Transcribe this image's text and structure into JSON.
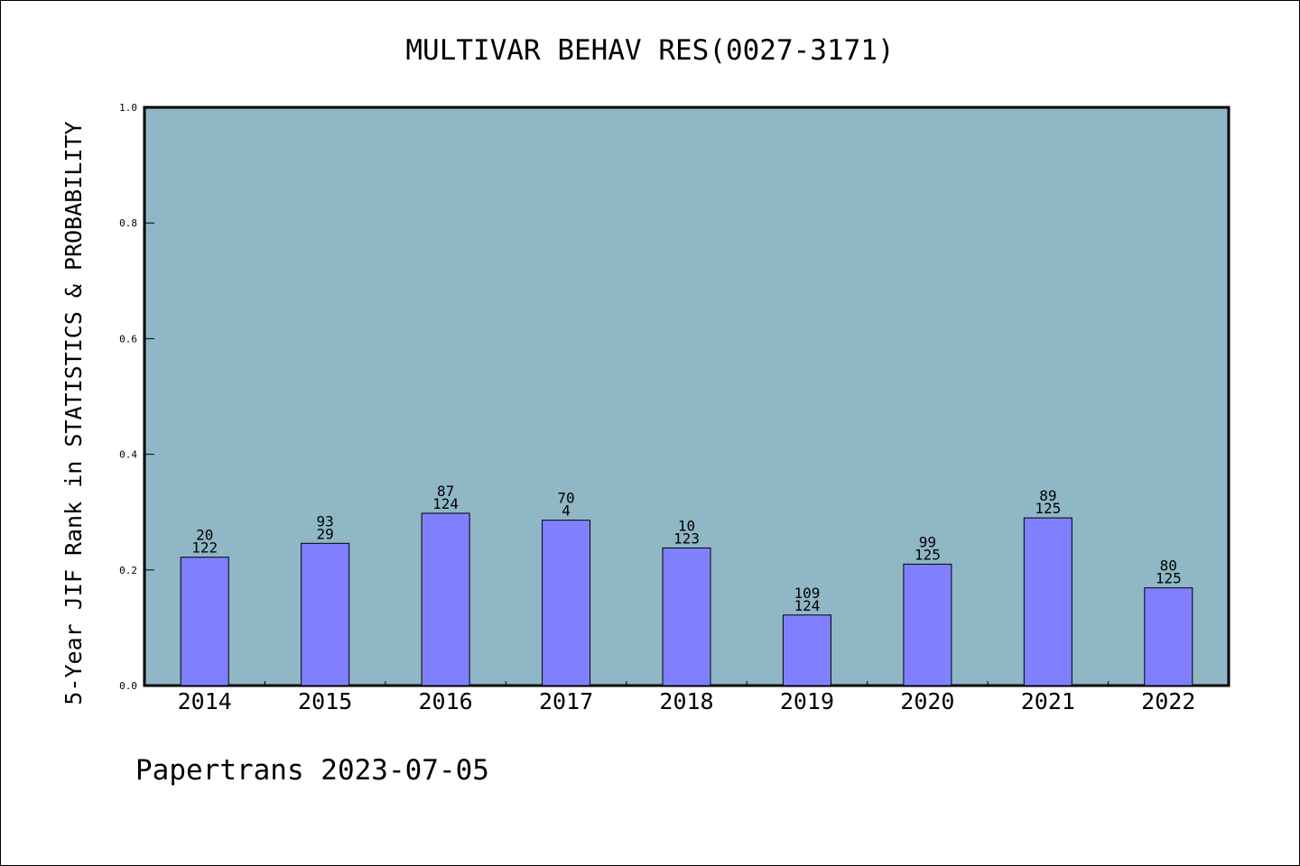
{
  "chart_data": {
    "type": "bar",
    "title": "MULTIVAR BEHAV RES(0027-3171)",
    "xlabel": "",
    "ylabel": "5-Year JIF Rank in STATISTICS & PROBABILITY",
    "ylim": [
      0,
      1.0
    ],
    "yticks": [
      "0.0",
      "0.2",
      "0.4",
      "0.6",
      "0.8",
      "1.0"
    ],
    "categories": [
      "2014",
      "2015",
      "2016",
      "2017",
      "2018",
      "2019",
      "2020",
      "2021",
      "2022"
    ],
    "values": [
      0.222,
      0.246,
      0.298,
      0.286,
      0.238,
      0.122,
      0.21,
      0.29,
      0.169
    ],
    "labels_top": [
      "20",
      "93",
      "87",
      "70",
      "10",
      "109",
      "99",
      "89",
      "80"
    ],
    "labels_bottom": [
      "122",
      "29",
      "124",
      "4",
      "123",
      "124",
      "125",
      "125",
      "125"
    ],
    "grid": false,
    "colors": {
      "plot_background": "#8fb7c5",
      "bar_fill": "#8080ff",
      "bar_stroke": "#000000"
    }
  },
  "footer": "Papertrans 2023-07-05"
}
